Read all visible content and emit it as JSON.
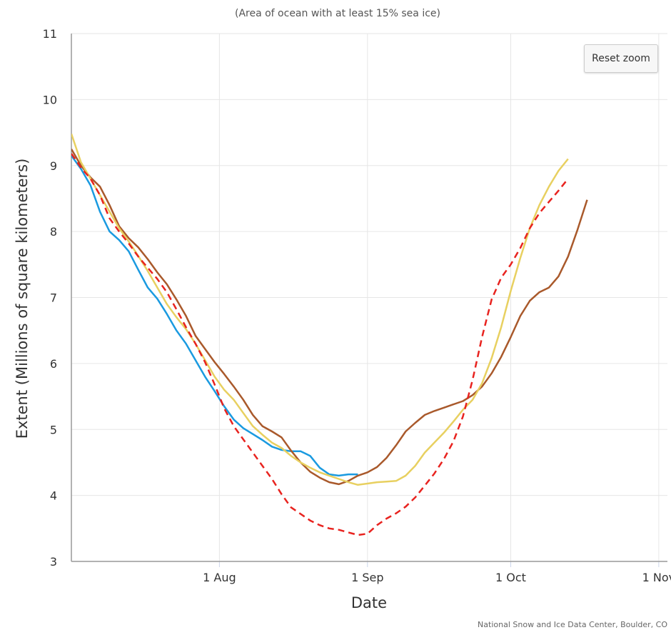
{
  "chart_data": {
    "type": "line",
    "subtitle": "(Area of ocean with at least 15% sea ice)",
    "xlabel": "Date",
    "ylabel": "Extent (Millions of square kilometers)",
    "x_ticks": [
      {
        "label": "1 Aug",
        "day": 31
      },
      {
        "label": "1 Sep",
        "day": 62
      },
      {
        "label": "1 Oct",
        "day": 92
      },
      {
        "label": "1 Nov",
        "day": 123
      }
    ],
    "xlim": [
      "2023-07-01",
      "2023-11-05"
    ],
    "ylim": [
      3,
      11
    ],
    "y_ticks": [
      3,
      4,
      5,
      6,
      7,
      8,
      9,
      10,
      11
    ],
    "grid": true,
    "series": [
      {
        "color": "#1a9ae0",
        "dash": false,
        "points": [
          [
            0,
            9.15
          ],
          [
            2,
            8.95
          ],
          [
            4,
            8.7
          ],
          [
            6,
            8.3
          ],
          [
            8,
            8.0
          ],
          [
            10,
            7.87
          ],
          [
            12,
            7.7
          ],
          [
            14,
            7.42
          ],
          [
            16,
            7.15
          ],
          [
            18,
            6.98
          ],
          [
            20,
            6.75
          ],
          [
            22,
            6.5
          ],
          [
            24,
            6.3
          ],
          [
            26,
            6.05
          ],
          [
            28,
            5.8
          ],
          [
            30,
            5.58
          ],
          [
            32,
            5.35
          ],
          [
            34,
            5.15
          ],
          [
            36,
            5.02
          ],
          [
            38,
            4.93
          ],
          [
            40,
            4.84
          ],
          [
            42,
            4.74
          ],
          [
            44,
            4.69
          ],
          [
            46,
            4.67
          ],
          [
            48,
            4.67
          ],
          [
            50,
            4.6
          ],
          [
            52,
            4.42
          ],
          [
            54,
            4.32
          ],
          [
            56,
            4.3
          ],
          [
            58,
            4.32
          ],
          [
            60,
            4.32
          ]
        ]
      },
      {
        "color": "#a9592b",
        "dash": false,
        "points": [
          [
            0,
            9.25
          ],
          [
            2,
            9.0
          ],
          [
            4,
            8.82
          ],
          [
            6,
            8.68
          ],
          [
            8,
            8.4
          ],
          [
            10,
            8.08
          ],
          [
            12,
            7.9
          ],
          [
            14,
            7.76
          ],
          [
            16,
            7.58
          ],
          [
            18,
            7.38
          ],
          [
            20,
            7.2
          ],
          [
            22,
            6.97
          ],
          [
            24,
            6.72
          ],
          [
            26,
            6.42
          ],
          [
            28,
            6.22
          ],
          [
            30,
            6.02
          ],
          [
            32,
            5.84
          ],
          [
            34,
            5.65
          ],
          [
            36,
            5.45
          ],
          [
            38,
            5.22
          ],
          [
            40,
            5.05
          ],
          [
            42,
            4.97
          ],
          [
            44,
            4.88
          ],
          [
            46,
            4.68
          ],
          [
            48,
            4.5
          ],
          [
            50,
            4.36
          ],
          [
            52,
            4.27
          ],
          [
            54,
            4.2
          ],
          [
            56,
            4.17
          ],
          [
            58,
            4.22
          ],
          [
            60,
            4.3
          ],
          [
            62,
            4.35
          ],
          [
            64,
            4.43
          ],
          [
            66,
            4.57
          ],
          [
            68,
            4.76
          ],
          [
            70,
            4.97
          ],
          [
            72,
            5.1
          ],
          [
            74,
            5.22
          ],
          [
            76,
            5.28
          ],
          [
            78,
            5.33
          ],
          [
            80,
            5.38
          ],
          [
            82,
            5.43
          ],
          [
            84,
            5.52
          ],
          [
            86,
            5.65
          ],
          [
            88,
            5.85
          ],
          [
            90,
            6.1
          ],
          [
            92,
            6.4
          ],
          [
            94,
            6.72
          ],
          [
            96,
            6.95
          ],
          [
            98,
            7.08
          ],
          [
            100,
            7.15
          ],
          [
            102,
            7.32
          ],
          [
            104,
            7.62
          ],
          [
            106,
            8.03
          ],
          [
            108,
            8.48
          ]
        ]
      },
      {
        "color": "#e8d060",
        "dash": false,
        "points": [
          [
            0,
            9.48
          ],
          [
            2,
            9.05
          ],
          [
            4,
            8.8
          ],
          [
            6,
            8.55
          ],
          [
            8,
            8.3
          ],
          [
            10,
            8.05
          ],
          [
            12,
            7.85
          ],
          [
            14,
            7.63
          ],
          [
            16,
            7.4
          ],
          [
            18,
            7.15
          ],
          [
            20,
            6.9
          ],
          [
            22,
            6.7
          ],
          [
            24,
            6.52
          ],
          [
            26,
            6.3
          ],
          [
            28,
            6.05
          ],
          [
            30,
            5.8
          ],
          [
            32,
            5.6
          ],
          [
            34,
            5.45
          ],
          [
            36,
            5.25
          ],
          [
            38,
            5.05
          ],
          [
            40,
            4.92
          ],
          [
            42,
            4.8
          ],
          [
            44,
            4.72
          ],
          [
            46,
            4.6
          ],
          [
            48,
            4.5
          ],
          [
            50,
            4.42
          ],
          [
            52,
            4.35
          ],
          [
            54,
            4.3
          ],
          [
            56,
            4.25
          ],
          [
            58,
            4.2
          ],
          [
            60,
            4.16
          ],
          [
            62,
            4.18
          ],
          [
            64,
            4.2
          ],
          [
            66,
            4.21
          ],
          [
            68,
            4.22
          ],
          [
            70,
            4.3
          ],
          [
            72,
            4.45
          ],
          [
            74,
            4.65
          ],
          [
            76,
            4.8
          ],
          [
            78,
            4.95
          ],
          [
            80,
            5.12
          ],
          [
            82,
            5.3
          ],
          [
            84,
            5.45
          ],
          [
            86,
            5.7
          ],
          [
            88,
            6.08
          ],
          [
            90,
            6.55
          ],
          [
            92,
            7.1
          ],
          [
            94,
            7.6
          ],
          [
            96,
            8.05
          ],
          [
            98,
            8.4
          ],
          [
            100,
            8.68
          ],
          [
            102,
            8.92
          ],
          [
            104,
            9.1
          ]
        ]
      },
      {
        "color": "#e8231f",
        "dash": true,
        "points": [
          [
            0,
            9.18
          ],
          [
            2,
            8.97
          ],
          [
            4,
            8.8
          ],
          [
            6,
            8.55
          ],
          [
            8,
            8.2
          ],
          [
            10,
            8.0
          ],
          [
            12,
            7.82
          ],
          [
            14,
            7.62
          ],
          [
            16,
            7.45
          ],
          [
            18,
            7.28
          ],
          [
            20,
            7.08
          ],
          [
            22,
            6.82
          ],
          [
            24,
            6.55
          ],
          [
            26,
            6.3
          ],
          [
            28,
            6.02
          ],
          [
            30,
            5.68
          ],
          [
            32,
            5.32
          ],
          [
            34,
            5.05
          ],
          [
            36,
            4.85
          ],
          [
            38,
            4.65
          ],
          [
            40,
            4.45
          ],
          [
            42,
            4.25
          ],
          [
            44,
            4.02
          ],
          [
            46,
            3.82
          ],
          [
            48,
            3.72
          ],
          [
            50,
            3.62
          ],
          [
            52,
            3.55
          ],
          [
            54,
            3.5
          ],
          [
            56,
            3.48
          ],
          [
            58,
            3.44
          ],
          [
            60,
            3.4
          ],
          [
            62,
            3.42
          ],
          [
            64,
            3.55
          ],
          [
            66,
            3.65
          ],
          [
            68,
            3.73
          ],
          [
            70,
            3.83
          ],
          [
            72,
            3.97
          ],
          [
            74,
            4.15
          ],
          [
            76,
            4.33
          ],
          [
            78,
            4.55
          ],
          [
            80,
            4.82
          ],
          [
            82,
            5.2
          ],
          [
            84,
            5.75
          ],
          [
            86,
            6.4
          ],
          [
            88,
            6.97
          ],
          [
            90,
            7.3
          ],
          [
            92,
            7.5
          ],
          [
            94,
            7.75
          ],
          [
            96,
            8.05
          ],
          [
            98,
            8.28
          ],
          [
            100,
            8.45
          ],
          [
            102,
            8.62
          ],
          [
            104,
            8.8
          ]
        ]
      }
    ],
    "credit": "National Snow and Ice Data Center, Boulder, CO"
  },
  "reset_zoom_label": "Reset zoom"
}
